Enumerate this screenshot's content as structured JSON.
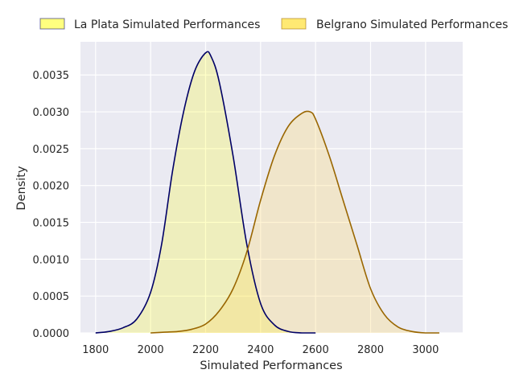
{
  "chart_data": {
    "type": "area",
    "xlabel": "Simulated Performances",
    "ylabel": "Density",
    "xlim": [
      1745,
      3135
    ],
    "ylim": [
      0,
      0.00395
    ],
    "x_ticks": [
      1800,
      2000,
      2200,
      2400,
      2600,
      2800,
      3000
    ],
    "x_tick_labels": [
      "1800",
      "2000",
      "2200",
      "2400",
      "2600",
      "2800",
      "3000"
    ],
    "y_ticks": [
      0,
      0.0005,
      0.001,
      0.0015,
      0.002,
      0.0025,
      0.003,
      0.0035
    ],
    "y_tick_labels": [
      "0.0000",
      "0.0005",
      "0.0010",
      "0.0015",
      "0.0020",
      "0.0025",
      "0.0030",
      "0.0035"
    ],
    "grid": true,
    "legend_position": "top, outside plot, horizontal",
    "series": [
      {
        "name": "La Plata Simulated Performances",
        "line_color": "#000066",
        "fill_color": "#ffff00",
        "x": [
          1800,
          1850,
          1900,
          1950,
          2000,
          2040,
          2080,
          2120,
          2160,
          2200,
          2220,
          2250,
          2300,
          2350,
          2400,
          2450,
          2500,
          2550,
          2600
        ],
        "y": [
          0.0,
          2e-05,
          7e-05,
          0.00019,
          0.00055,
          0.0012,
          0.0022,
          0.003,
          0.00355,
          0.0038,
          0.00375,
          0.0034,
          0.0024,
          0.0012,
          0.0004,
          0.00011,
          2e-05,
          0.0,
          0.0
        ]
      },
      {
        "name": "Belgrano Simulated Performances",
        "line_color": "#996600",
        "fill_color": "#ffd966",
        "x": [
          2000,
          2050,
          2100,
          2150,
          2200,
          2250,
          2300,
          2350,
          2400,
          2450,
          2500,
          2550,
          2580,
          2600,
          2650,
          2700,
          2750,
          2800,
          2850,
          2900,
          2950,
          3000,
          3050
        ],
        "y": [
          0.0,
          1e-05,
          2e-05,
          5e-05,
          0.00012,
          0.0003,
          0.0006,
          0.0011,
          0.0018,
          0.0024,
          0.0028,
          0.00298,
          0.003,
          0.0029,
          0.0024,
          0.0018,
          0.0012,
          0.0006,
          0.00025,
          8e-05,
          2e-05,
          0.0,
          0.0
        ]
      }
    ]
  }
}
